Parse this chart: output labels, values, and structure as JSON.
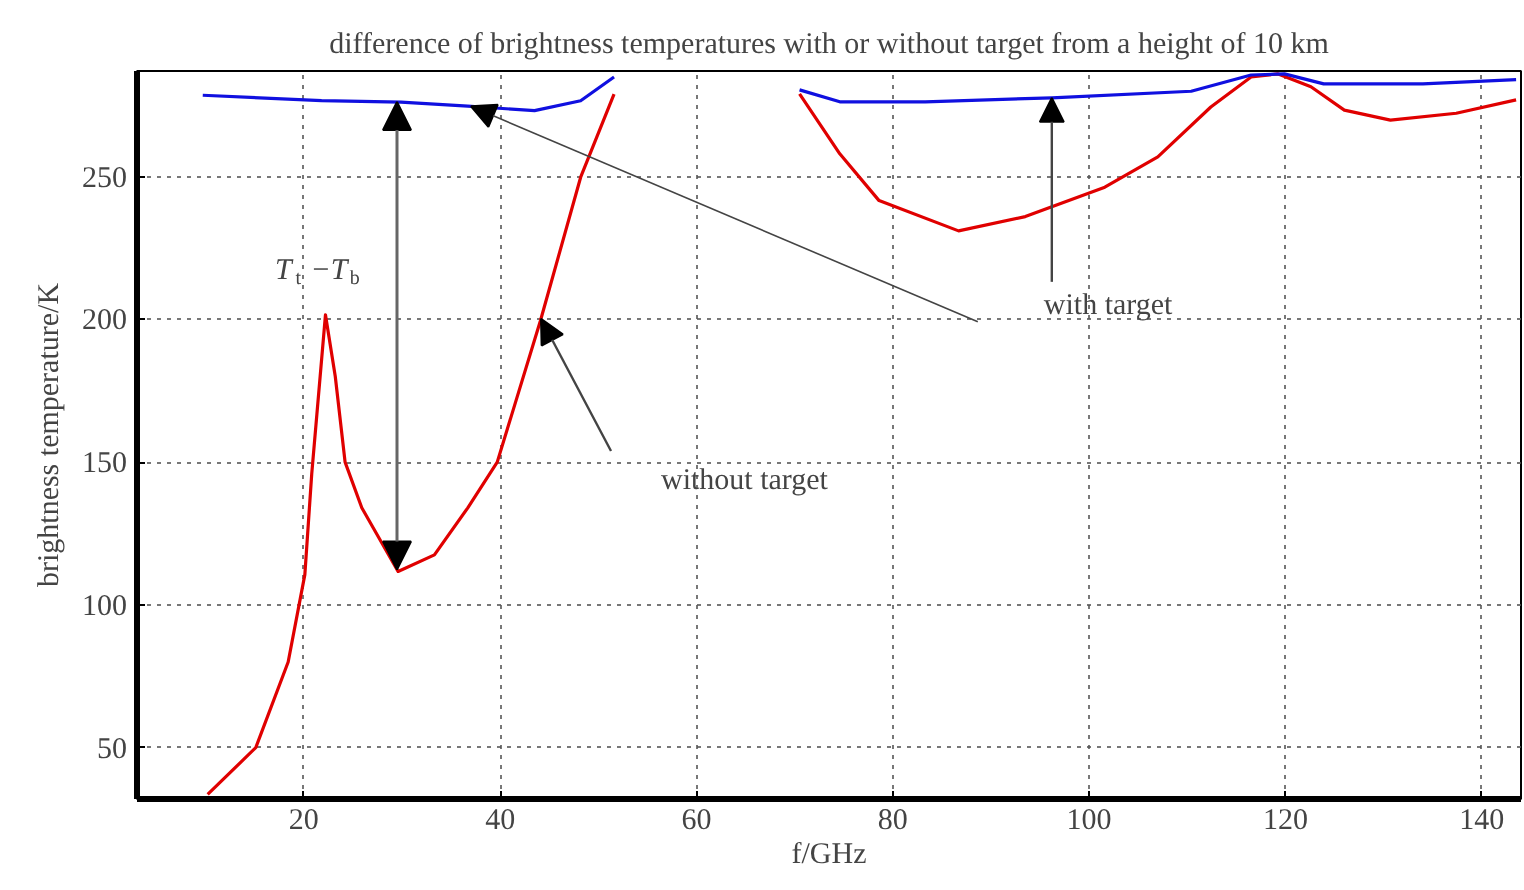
{
  "chart_data": {
    "type": "line",
    "title": "difference of brightness temperatures with or without target from a height of 10 km",
    "xlabel": "f/GHz",
    "ylabel": "brightness temperature/K",
    "xlim": [
      3,
      144
    ],
    "ylim": [
      32,
      287
    ],
    "xticks": [
      20,
      40,
      60,
      80,
      100,
      120,
      140
    ],
    "yticks": [
      50,
      100,
      150,
      200,
      250
    ],
    "grid": true,
    "marker": "none",
    "line_style": "solid",
    "series": [
      {
        "color": "#e00000",
        "x": [
          10.2,
          15.1,
          18.4,
          20.1,
          20.8,
          22.2,
          23.2,
          24.2,
          25.9,
          29.6,
          33.3,
          36.7,
          39.7,
          44.1,
          48.2,
          51.6,
          53.6,
          66.5,
          70.5,
          74.6,
          78.6,
          86.7,
          93.5,
          101.6,
          107,
          112.4,
          116.5,
          119.2,
          122.6,
          126,
          130.7,
          137.4,
          143.5
        ],
        "values": [
          33.6,
          50,
          80,
          110.6,
          145.8,
          201.6,
          180,
          150,
          134,
          111.7,
          117.5,
          134,
          150,
          199.5,
          249.8,
          278.9,
          null,
          null,
          279,
          258,
          241.6,
          231,
          236,
          246.3,
          256.9,
          274.4,
          284.9,
          286,
          281.5,
          273.3,
          269.8,
          272.2,
          276.9
        ]
      },
      {
        "color": "#1010e0",
        "x": [
          9.7,
          21.8,
          29.9,
          36.7,
          43.5,
          48.2,
          51.6,
          53.6,
          66.5,
          70.5,
          74.6,
          83.3,
          96.2,
          110.4,
          116.5,
          119.9,
          123.9,
          134,
          143.5
        ],
        "values": [
          278.5,
          276.6,
          276.1,
          274.7,
          273.1,
          276.6,
          284.9,
          null,
          null,
          280.4,
          276.2,
          276.2,
          277.6,
          279.9,
          285.6,
          286,
          282.5,
          282.5,
          284
        ]
      }
    ],
    "annotations": [
      "T$_{t}$−T$_{b}$",
      {
        "text": "with target",
        "x": 96.2,
        "y": 277.6
      },
      "without target"
    ]
  }
}
